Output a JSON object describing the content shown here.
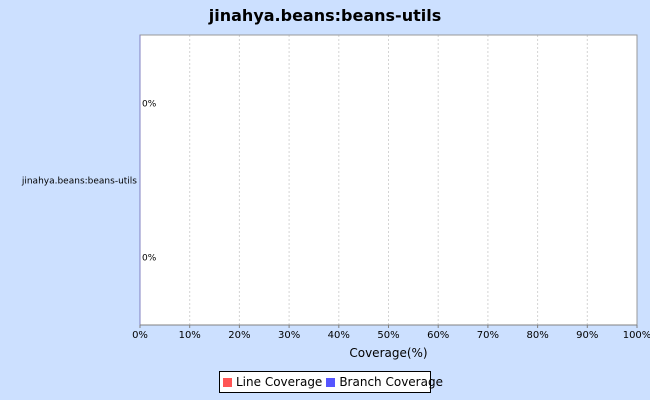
{
  "chart_data": {
    "type": "bar",
    "orientation": "horizontal",
    "title": "jinahya.beans:beans-utils",
    "xlabel": "Coverage(%)",
    "ylabel": "",
    "categories": [
      "jinahya.beans:beans-utils"
    ],
    "series": [
      {
        "name": "Line Coverage",
        "values": [
          0
        ],
        "color": "#ff5555"
      },
      {
        "name": "Branch Coverage",
        "values": [
          0
        ],
        "color": "#5555ff"
      }
    ],
    "value_labels": [
      "0%",
      "0%"
    ],
    "xlim": [
      0,
      100
    ],
    "x_ticks": [
      0,
      10,
      20,
      30,
      40,
      50,
      60,
      70,
      80,
      90,
      100
    ],
    "x_tick_labels": [
      "0%",
      "10%",
      "20%",
      "30%",
      "40%",
      "50%",
      "60%",
      "70%",
      "80%",
      "90%",
      "100%"
    ],
    "grid": true,
    "legend_position": "bottom"
  }
}
